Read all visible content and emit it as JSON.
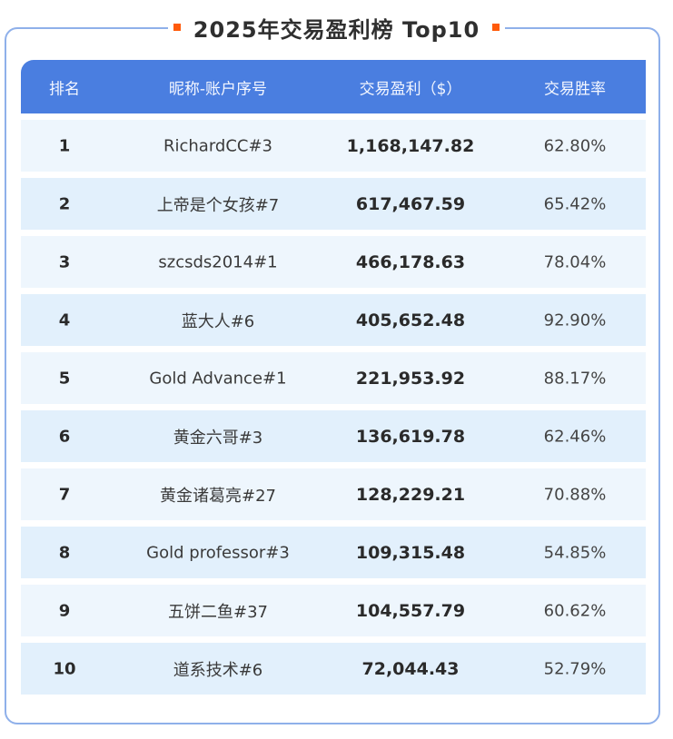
{
  "title": "2025年交易盈利榜 Top10",
  "colors": {
    "accent_orange": "#ff5a0a",
    "header_blue": "#4a7ee0",
    "border_blue": "#8fb0ea",
    "row_light": "#eef6fd",
    "row_alt": "#e2f0fc"
  },
  "table": {
    "headers": [
      "排名",
      "昵称-账户序号",
      "交易盈利（$）",
      "交易胜率"
    ],
    "rows": [
      {
        "rank": "1",
        "name": "RichardCC#3",
        "profit": "1,168,147.82",
        "win_rate": "62.80%"
      },
      {
        "rank": "2",
        "name": "上帝是个女孩#7",
        "profit": "617,467.59",
        "win_rate": "65.42%"
      },
      {
        "rank": "3",
        "name": "szcsds2014#1",
        "profit": "466,178.63",
        "win_rate": "78.04%"
      },
      {
        "rank": "4",
        "name": "蓝大人#6",
        "profit": "405,652.48",
        "win_rate": "92.90%"
      },
      {
        "rank": "5",
        "name": "Gold Advance#1",
        "profit": "221,953.92",
        "win_rate": "88.17%"
      },
      {
        "rank": "6",
        "name": "黄金六哥#3",
        "profit": "136,619.78",
        "win_rate": "62.46%"
      },
      {
        "rank": "7",
        "name": "黄金诸葛亮#27",
        "profit": "128,229.21",
        "win_rate": "70.88%"
      },
      {
        "rank": "8",
        "name": "Gold professor#3",
        "profit": "109,315.48",
        "win_rate": "54.85%"
      },
      {
        "rank": "9",
        "name": "五饼二鱼#37",
        "profit": "104,557.79",
        "win_rate": "60.62%"
      },
      {
        "rank": "10",
        "name": "道系技术#6",
        "profit": "72,044.43",
        "win_rate": "52.79%"
      }
    ]
  }
}
